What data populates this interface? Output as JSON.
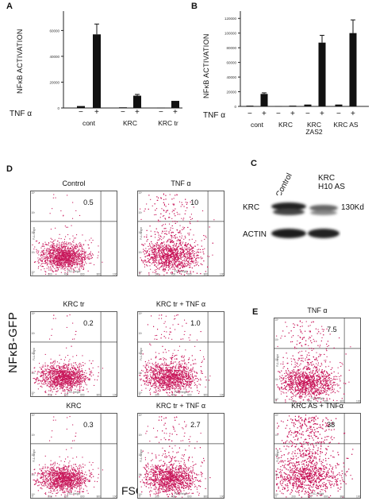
{
  "panel_a": {
    "letter": "A",
    "ylabel": "NFκB ACTIVATION",
    "treatment_label": "TNF α",
    "signs": [
      "−",
      "+",
      "−",
      "+",
      "−",
      "+"
    ],
    "categories": [
      "cont",
      "KRC",
      "KRC tr"
    ],
    "yticks": [
      "0",
      "20000",
      "40000",
      "60000"
    ]
  },
  "panel_b": {
    "letter": "B",
    "ylabel": "NFκB ACTIVATION",
    "treatment_label": "TNF α",
    "signs": [
      "−",
      "+",
      "−",
      "+",
      "−",
      "+",
      "−",
      "+"
    ],
    "categories": [
      "cont",
      "KRC",
      "KRC ZAS2",
      "KRC AS"
    ],
    "yticks": [
      "0",
      "20000",
      "40000",
      "60000",
      "80000",
      "100000",
      "120000"
    ]
  },
  "panel_c": {
    "letter": "C",
    "lanes": [
      "Control",
      "KRC H10 AS"
    ],
    "rows": [
      "KRC",
      "ACTIN"
    ],
    "size_marker": "130Kd"
  },
  "panel_d": {
    "letter": "D",
    "plots": [
      {
        "title": "Control",
        "value": "0.5"
      },
      {
        "title": "TNF α",
        "value": "10"
      },
      {
        "title": "KRC tr",
        "value": "0.2"
      },
      {
        "title": "KRC tr + TNF α",
        "value": "1.0"
      },
      {
        "title": "KRC",
        "value": "0.3"
      },
      {
        "title": "KRC tr + TNF α",
        "value": "2.7"
      }
    ]
  },
  "panel_e": {
    "letter": "E",
    "plots": [
      {
        "title": "TNF α",
        "value": "7.5"
      },
      {
        "title": "KRC AS + TNFα",
        "value": "38"
      }
    ]
  },
  "axes": {
    "y_big": "NFκB-GFP",
    "x_big": "FSC",
    "facs_y": "FL1-Height",
    "facs_x": "FSC-Height",
    "facs_xticks": [
      "0",
      "200",
      "400",
      "600",
      "800",
      "1000"
    ],
    "facs_yticks": [
      "10⁰",
      "10¹",
      "10²",
      "10³",
      "10⁴"
    ]
  },
  "colors": {
    "bar": "#111111",
    "dots": "#c8175a",
    "axis": "#222222"
  },
  "chart_data": [
    {
      "type": "bar",
      "panel": "A",
      "categories": [
        "cont −",
        "cont +",
        "KRC −",
        "KRC +",
        "KRC tr −",
        "KRC tr +"
      ],
      "values": [
        1500,
        57000,
        500,
        9500,
        300,
        5500
      ],
      "errors": [
        0,
        8000,
        0,
        1000,
        0,
        0
      ],
      "ylim": [
        0,
        75000
      ]
    },
    {
      "type": "bar",
      "panel": "B",
      "categories": [
        "cont −",
        "cont +",
        "KRC −",
        "KRC +",
        "KRC ZAS2 −",
        "KRC ZAS2 +",
        "KRC AS −",
        "KRC AS +"
      ],
      "values": [
        1000,
        17000,
        500,
        1000,
        2500,
        87000,
        2500,
        100000
      ],
      "errors": [
        0,
        1500,
        0,
        0,
        0,
        10000,
        0,
        18000
      ],
      "ylim": [
        0,
        130000
      ]
    }
  ]
}
